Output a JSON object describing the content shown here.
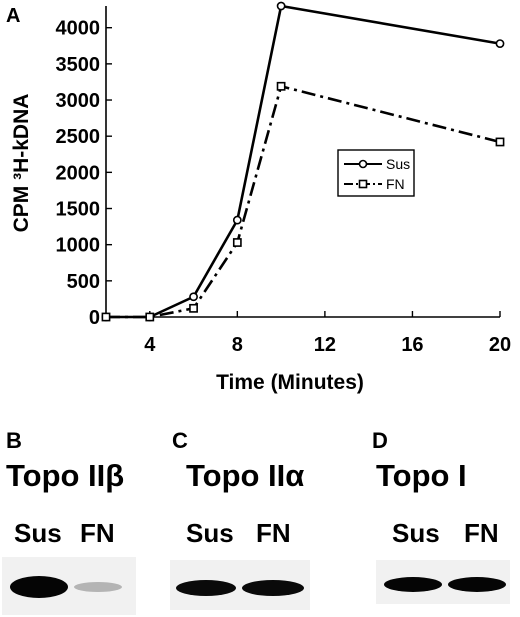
{
  "chart_data": {
    "type": "line",
    "panel_label": "A",
    "xlabel": "Time (Minutes)",
    "ylabel": "CPM ³H-kDNA",
    "x_ticks": [
      4,
      8,
      12,
      16,
      20
    ],
    "y_ticks": [
      0,
      500,
      1000,
      1500,
      2000,
      2500,
      3000,
      3500,
      4000
    ],
    "xlim": [
      2,
      20
    ],
    "ylim": [
      0,
      4300
    ],
    "legend_position": "center-right",
    "grid": false,
    "series": [
      {
        "name": "Sus",
        "style": "solid",
        "marker": "circle",
        "x": [
          2,
          4,
          6,
          8,
          10,
          20
        ],
        "y": [
          0,
          0,
          280,
          1340,
          4300,
          3780
        ]
      },
      {
        "name": "FN",
        "style": "dash-dot",
        "marker": "square",
        "x": [
          2,
          4,
          6,
          8,
          10,
          20
        ],
        "y": [
          0,
          0,
          120,
          1030,
          3190,
          2420
        ]
      }
    ]
  },
  "blots": [
    {
      "letter": "B",
      "protein": "Topo IIβ",
      "lanes": [
        "Sus",
        "FN"
      ],
      "band_intensity": [
        1.0,
        0.15
      ]
    },
    {
      "letter": "C",
      "protein": "Topo IIα",
      "lanes": [
        "Sus",
        "FN"
      ],
      "band_intensity": [
        0.95,
        0.95
      ]
    },
    {
      "letter": "D",
      "protein": "Topo I",
      "lanes": [
        "Sus",
        "FN"
      ],
      "band_intensity": [
        1.0,
        1.0
      ]
    }
  ]
}
